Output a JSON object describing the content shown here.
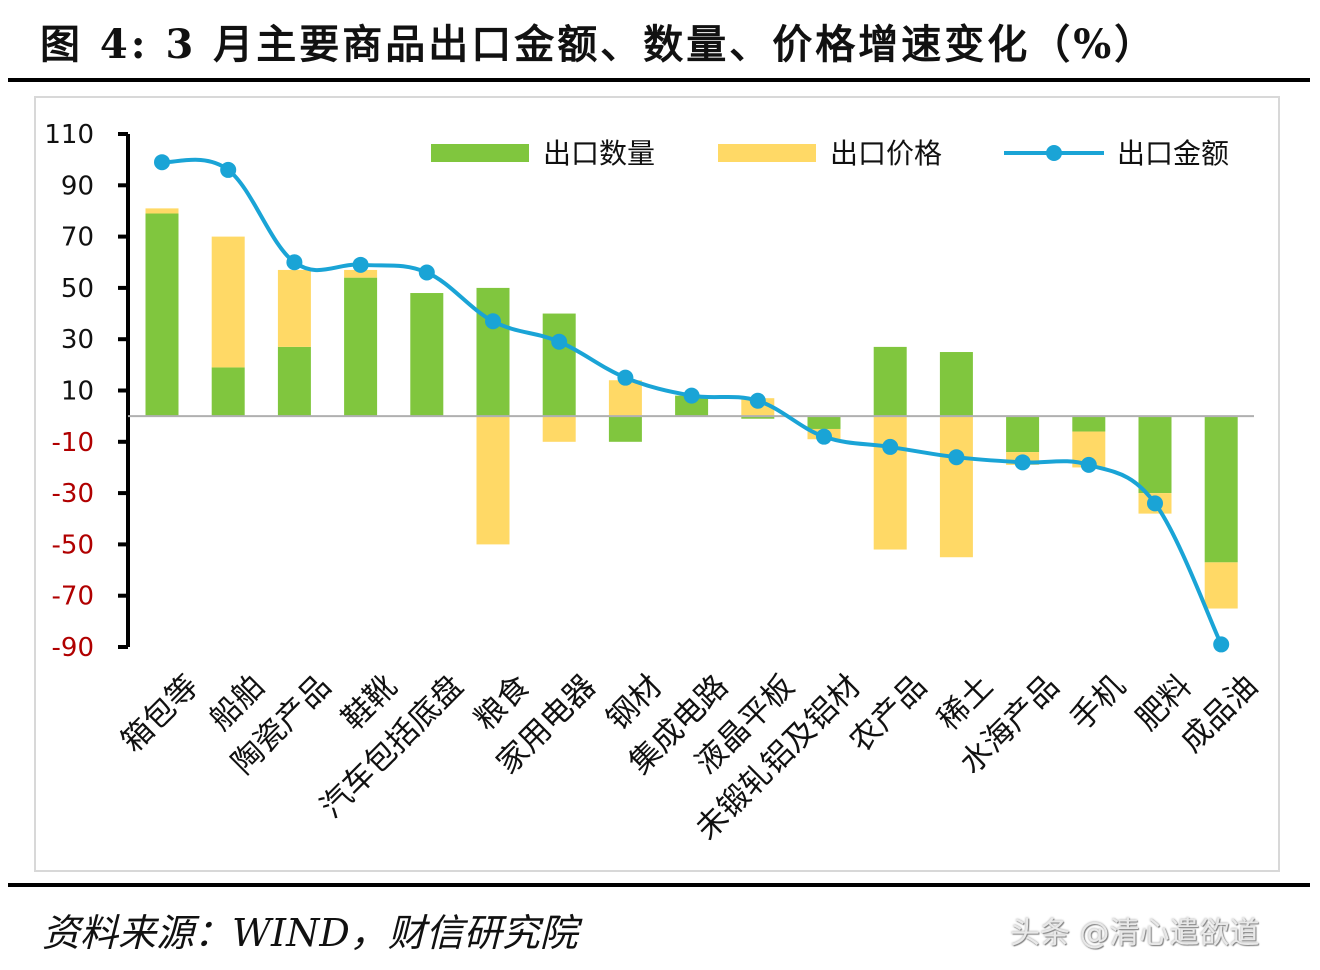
{
  "header": {
    "title": "图 4: 3 月主要商品出口金额、数量、价格增速变化（%）"
  },
  "footer": {
    "source": "资料来源：WIND，财信研究院",
    "watermark": "头条 @清心遣欲道"
  },
  "colors": {
    "quantity": "#80c63e",
    "price": "#ffd966",
    "value": "#1aa4d6",
    "negative_tick": "#b00000",
    "axis": "#000000"
  },
  "chart_data": {
    "type": "bar",
    "categories": [
      "箱包等",
      "船舶",
      "陶瓷产品",
      "鞋靴",
      "汽车包括底盘",
      "粮食",
      "家用电器",
      "钢材",
      "集成电路",
      "液晶平板",
      "未锻轧铝及铝材",
      "农产品",
      "稀土",
      "水海产品",
      "手机",
      "肥料",
      "成品油"
    ],
    "series": [
      {
        "name": "出口数量",
        "kind": "bar",
        "values": [
          79,
          19,
          27,
          54,
          48,
          50,
          40,
          -10,
          8,
          -1,
          -5,
          27,
          25,
          -14,
          -6,
          -30,
          -57
        ]
      },
      {
        "name": "出口价格",
        "kind": "bar",
        "values": [
          2,
          51,
          30,
          3,
          0,
          -50,
          -10,
          14,
          0,
          7,
          -4,
          -52,
          -55,
          -5,
          -14,
          -8,
          -18
        ]
      },
      {
        "name": "出口金额",
        "kind": "line",
        "values": [
          99,
          96,
          60,
          59,
          56,
          37,
          29,
          15,
          8,
          6,
          -8,
          -12,
          -16,
          -18,
          -19,
          -34,
          -89
        ]
      }
    ],
    "stacking": "quantity from zero; price stacked beyond quantity when same sign",
    "yticks": [
      110,
      90,
      70,
      50,
      30,
      10,
      -10,
      -30,
      -50,
      -70,
      -90
    ],
    "ylim": [
      -90,
      110
    ],
    "legend": "top-right",
    "grid": false
  }
}
